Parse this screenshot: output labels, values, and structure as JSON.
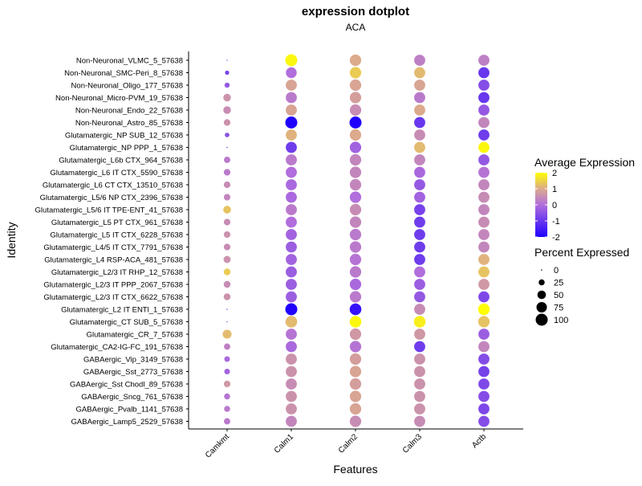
{
  "chart_data": {
    "type": "dotplot",
    "title": "expression dotplot",
    "subtitle": "ACA",
    "xlabel": "Features",
    "ylabel": "Identity",
    "features": [
      "Camkmt",
      "Calm1",
      "Calm2",
      "Calm3",
      "Actb"
    ],
    "identities": [
      "Non-Neuronal_VLMC_5_57638",
      "Non-Neuronal_SMC-Peri_8_57638",
      "Non-Neuronal_Oligo_177_57638",
      "Non-Neuronal_Micro-PVM_19_57638",
      "Non-Neuronal_Endo_22_57638",
      "Non-Neuronal_Astro_85_57638",
      "Glutamatergic_NP SUB_12_57638",
      "Glutamatergic_NP PPP_1_57638",
      "Glutamatergic_L6b CTX_964_57638",
      "Glutamatergic_L6 IT CTX_5590_57638",
      "Glutamatergic_L6 CT CTX_13510_57638",
      "Glutamatergic_L5/6 NP CTX_2396_57638",
      "Glutamatergic_L5/6 IT TPE-ENT_41_57638",
      "Glutamatergic_L5 PT CTX_961_57638",
      "Glutamatergic_L5 IT CTX_6228_57638",
      "Glutamatergic_L4/5 IT CTX_7791_57638",
      "Glutamatergic_L4 RSP-ACA_481_57638",
      "Glutamatergic_L2/3 IT RHP_12_57638",
      "Glutamatergic_L2/3 IT PPP_2067_57638",
      "Glutamatergic_L2/3 IT CTX_6622_57638",
      "Glutamatergic_L2 IT ENTl_1_57638",
      "Glutamatergic_CT SUB_5_57638",
      "Glutamatergic_CR_7_57638",
      "Glutamatergic_CA2-IG-FC_191_57638",
      "GABAergic_Vip_3149_57638",
      "GABAergic_Sst_2773_57638",
      "GABAergic_Sst Chodl_89_57638",
      "GABAergic_Sncg_761_57638",
      "GABAergic_Pvalb_1141_57638",
      "GABAergic_Lamp5_2529_57638"
    ],
    "avg_expression": [
      [
        -0.3,
        1.9,
        1.0,
        0.3,
        0.3
      ],
      [
        -0.8,
        0.0,
        1.4,
        1.2,
        -1.0
      ],
      [
        -0.4,
        0.9,
        0.9,
        0.9,
        -0.6
      ],
      [
        0.6,
        0.2,
        0.8,
        0.2,
        -1.0
      ],
      [
        0.5,
        0.9,
        0.5,
        1.0,
        -0.4
      ],
      [
        0.6,
        -2.0,
        -2.0,
        -1.0,
        0.4
      ],
      [
        -0.5,
        1.1,
        1.0,
        0.5,
        -0.9
      ],
      [
        -0.8,
        -0.9,
        -0.2,
        1.2,
        1.9
      ],
      [
        0.2,
        0.2,
        0.4,
        0.4,
        -0.4
      ],
      [
        0.2,
        0.0,
        0.4,
        -0.1,
        0.1
      ],
      [
        0.5,
        -0.1,
        0.4,
        -0.4,
        0.4
      ],
      [
        0.4,
        -0.1,
        0.0,
        -0.2,
        0.5
      ],
      [
        1.3,
        0.2,
        0.5,
        -0.8,
        0.4
      ],
      [
        0.5,
        0.0,
        0.4,
        -0.9,
        0.5
      ],
      [
        0.6,
        -0.2,
        0.2,
        -0.9,
        0.4
      ],
      [
        0.5,
        -0.3,
        0.2,
        -0.9,
        0.4
      ],
      [
        0.6,
        -0.2,
        0.1,
        -0.9,
        1.1
      ],
      [
        1.4,
        -0.3,
        0.2,
        0.0,
        1.3
      ],
      [
        0.5,
        -0.3,
        -0.1,
        -0.3,
        0.7
      ],
      [
        0.6,
        -0.3,
        0.2,
        -0.4,
        -0.7
      ],
      [
        -0.7,
        -2.0,
        -1.7,
        0.5,
        2.0
      ],
      [
        -0.3,
        1.2,
        1.9,
        1.8,
        1.3
      ],
      [
        1.2,
        0.1,
        0.7,
        0.7,
        -0.3
      ],
      [
        0.3,
        -0.1,
        0.1,
        -0.9,
        0.4
      ],
      [
        -0.1,
        0.6,
        0.8,
        0.6,
        -0.6
      ],
      [
        -0.2,
        0.6,
        0.9,
        0.6,
        -0.8
      ],
      [
        0.7,
        0.5,
        0.8,
        0.6,
        -0.7
      ],
      [
        0.1,
        0.6,
        0.9,
        0.6,
        -0.6
      ],
      [
        0.2,
        0.6,
        0.9,
        0.6,
        -0.7
      ],
      [
        0.2,
        0.4,
        0.5,
        0.5,
        -0.6
      ]
    ],
    "pct_expressed": [
      [
        2,
        100,
        90,
        85,
        85
      ],
      [
        12,
        80,
        90,
        85,
        85
      ],
      [
        18,
        85,
        90,
        85,
        85
      ],
      [
        40,
        85,
        90,
        85,
        85
      ],
      [
        40,
        85,
        90,
        85,
        85
      ],
      [
        30,
        100,
        100,
        85,
        85
      ],
      [
        15,
        85,
        90,
        85,
        85
      ],
      [
        2,
        85,
        90,
        85,
        85
      ],
      [
        28,
        85,
        90,
        85,
        85
      ],
      [
        30,
        85,
        90,
        85,
        85
      ],
      [
        30,
        85,
        90,
        85,
        85
      ],
      [
        30,
        85,
        90,
        85,
        85
      ],
      [
        42,
        85,
        90,
        85,
        85
      ],
      [
        30,
        85,
        90,
        85,
        85
      ],
      [
        30,
        85,
        90,
        85,
        85
      ],
      [
        30,
        85,
        90,
        85,
        85
      ],
      [
        35,
        85,
        90,
        85,
        85
      ],
      [
        32,
        85,
        90,
        85,
        85
      ],
      [
        32,
        85,
        90,
        85,
        85
      ],
      [
        32,
        85,
        90,
        85,
        85
      ],
      [
        2,
        100,
        95,
        85,
        95
      ],
      [
        2,
        95,
        95,
        95,
        90
      ],
      [
        55,
        85,
        90,
        85,
        85
      ],
      [
        28,
        85,
        90,
        85,
        85
      ],
      [
        22,
        85,
        90,
        85,
        85
      ],
      [
        22,
        85,
        90,
        85,
        85
      ],
      [
        30,
        85,
        90,
        85,
        85
      ],
      [
        25,
        85,
        90,
        85,
        85
      ],
      [
        25,
        85,
        90,
        85,
        85
      ],
      [
        28,
        85,
        90,
        85,
        85
      ]
    ],
    "color_legend": {
      "title": "Average Expression",
      "ticks": [
        "2",
        "1",
        "0",
        "-1",
        "-2"
      ],
      "range": [
        -2,
        2
      ],
      "colors": {
        "low": "#1f00ff",
        "mid": "#b16edc",
        "mid_high": "#dcaa8c",
        "high": "#ffff00"
      }
    },
    "size_legend": {
      "title": "Percent Expressed",
      "values": [
        0,
        25,
        50,
        75,
        100
      ],
      "labels": [
        "0",
        "25",
        "50",
        "75",
        "100"
      ]
    },
    "legend_position": "right"
  }
}
